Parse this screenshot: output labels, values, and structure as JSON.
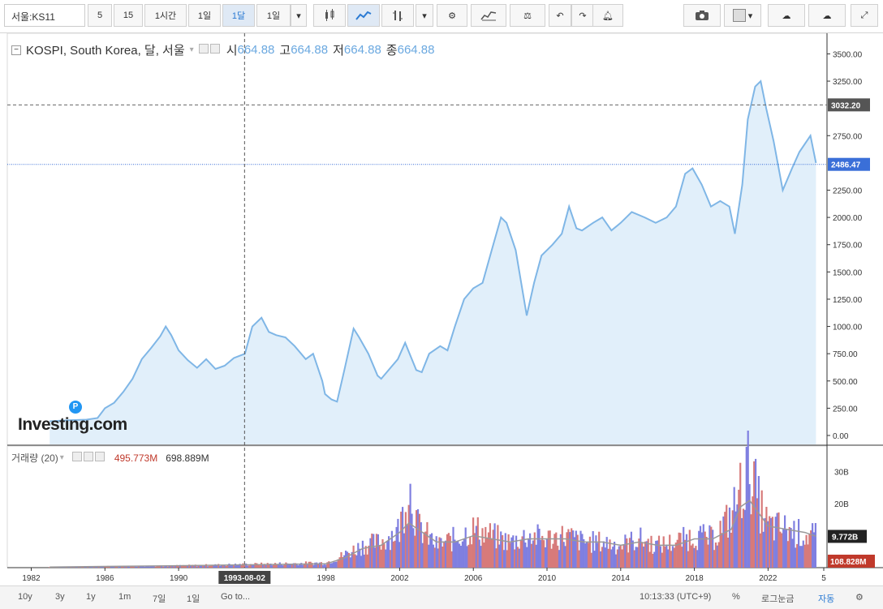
{
  "toolbar": {
    "symbol": "서울:KS11",
    "intervals": [
      "5",
      "15",
      "1시간",
      "1일",
      "1달",
      "1일"
    ],
    "selected_interval": "1달"
  },
  "legend": {
    "name": "KOSPI, South Korea, 달, 서울",
    "open_label": "시",
    "open": "664.88",
    "high_label": "고",
    "high": "664.88",
    "low_label": "저",
    "low": "664.88",
    "close_label": "종",
    "close": "664.88"
  },
  "volume_legend": {
    "label": "거래량 (20)",
    "value1": "495.773M",
    "value2": "698.889M"
  },
  "watermark": "Investing.com",
  "watermark_badge": "P",
  "price_axis": {
    "ticks": [
      "3500.00",
      "3250.00",
      "3032.20",
      "2750.00",
      "2486.47",
      "2250.00",
      "2000.00",
      "1750.00",
      "1500.00",
      "1250.00",
      "1000.00",
      "750.00",
      "500.00",
      "250.00",
      "0.00"
    ],
    "hline_label": "3032.20",
    "last_label": "2486.47"
  },
  "volume_axis": {
    "ticks": [
      "30B",
      "20B",
      "9.772B",
      "108.828M"
    ]
  },
  "time_axis": {
    "ticks": [
      "1982",
      "1986",
      "1990",
      "1993-08-02",
      "1998",
      "2002",
      "2006",
      "2010",
      "2014",
      "2018",
      "2022",
      "5"
    ]
  },
  "crosshair_date": "1993-08-02",
  "bottombar": {
    "ranges": [
      "10y",
      "3y",
      "1y",
      "1m",
      "7일",
      "1일",
      "Go to..."
    ],
    "time": "10:13:33 (UTC+9)",
    "percent": "%",
    "log": "로그눈금",
    "auto": "자동"
  },
  "colors": {
    "line": "#7fb6e6",
    "area": "#e1effa",
    "vol_up": "#d77a7a",
    "vol_down": "#7f7fe0",
    "ma": "#999999",
    "last_price": "#3a6fd8"
  },
  "chart_data": {
    "type": "area",
    "title": "KOSPI, South Korea, 달, 서울",
    "x": [
      1983.0,
      1984.0,
      1985.0,
      1985.6,
      1986.0,
      1986.5,
      1987.0,
      1987.5,
      1988.0,
      1988.5,
      1989.0,
      1989.3,
      1989.6,
      1990.0,
      1990.5,
      1991.0,
      1991.5,
      1992.0,
      1992.5,
      1993.0,
      1993.6,
      1994.0,
      1994.5,
      1994.9,
      1995.3,
      1995.8,
      1996.3,
      1996.9,
      1997.3,
      1997.8,
      1997.95,
      1998.3,
      1998.6,
      1999.0,
      1999.5,
      1999.8,
      2000.3,
      2000.8,
      2001.0,
      2001.5,
      2001.9,
      2002.3,
      2002.9,
      2003.2,
      2003.6,
      2004.2,
      2004.6,
      2005.0,
      2005.5,
      2006.0,
      2006.5,
      2007.0,
      2007.5,
      2007.8,
      2008.3,
      2008.6,
      2008.9,
      2009.3,
      2009.7,
      2010.3,
      2010.8,
      2011.2,
      2011.6,
      2011.9,
      2012.5,
      2013.0,
      2013.5,
      2014.0,
      2014.6,
      2015.3,
      2015.9,
      2016.5,
      2017.0,
      2017.5,
      2017.9,
      2018.4,
      2018.9,
      2019.4,
      2019.9,
      2020.2,
      2020.6,
      2020.9,
      2021.3,
      2021.6,
      2021.9,
      2022.3,
      2022.8,
      2023.3,
      2023.7,
      2024.3,
      2024.6
    ],
    "y": [
      130,
      140,
      145,
      160,
      250,
      300,
      400,
      520,
      700,
      800,
      910,
      1000,
      920,
      780,
      690,
      620,
      700,
      610,
      640,
      710,
      750,
      1000,
      1080,
      950,
      920,
      900,
      820,
      700,
      750,
      500,
      380,
      330,
      310,
      600,
      980,
      900,
      750,
      550,
      520,
      620,
      700,
      850,
      600,
      580,
      750,
      820,
      780,
      1000,
      1250,
      1350,
      1400,
      1700,
      2000,
      1950,
      1700,
      1400,
      1100,
      1400,
      1650,
      1750,
      1850,
      2100,
      1900,
      1880,
      1950,
      2000,
      1880,
      1950,
      2050,
      2000,
      1950,
      2000,
      2100,
      2400,
      2450,
      2300,
      2100,
      2150,
      2100,
      1850,
      2300,
      2900,
      3200,
      3250,
      3000,
      2700,
      2250,
      2450,
      2600,
      2750,
      2500
    ],
    "volume": {
      "name": "거래량 (20)",
      "x": [
        1983,
        1990,
        1998,
        1999,
        2000,
        2001,
        2002,
        2002.5,
        2003,
        2004,
        2005,
        2006,
        2007,
        2008,
        2009,
        2010,
        2011,
        2012,
        2013,
        2014,
        2015,
        2016,
        2017,
        2018,
        2019,
        2020,
        2020.5,
        2021,
        2021.5,
        2022,
        2023,
        2024,
        2024.6
      ],
      "values": [
        0.2,
        0.6,
        1.5,
        4,
        7,
        8,
        12,
        26,
        13,
        7,
        9,
        12,
        10,
        8,
        10,
        9,
        10,
        8,
        8,
        7,
        9,
        7,
        8,
        10,
        9,
        16,
        24,
        32,
        20,
        13,
        12,
        10,
        9.7
      ],
      "ma": [
        0.2,
        0.6,
        1.2,
        3,
        6,
        7,
        11,
        14,
        12,
        8,
        8,
        10,
        9,
        8,
        9,
        9,
        9,
        8,
        8,
        7,
        8,
        7,
        7,
        9,
        9,
        12,
        19,
        21,
        17,
        13,
        12,
        11,
        9.8
      ]
    },
    "ylim": [
      0,
      3600
    ],
    "xlim": [
      1980.7,
      2025.2
    ],
    "hline": 3032.2,
    "last_value": 2486.47,
    "crosshair_x": 1993.58
  }
}
